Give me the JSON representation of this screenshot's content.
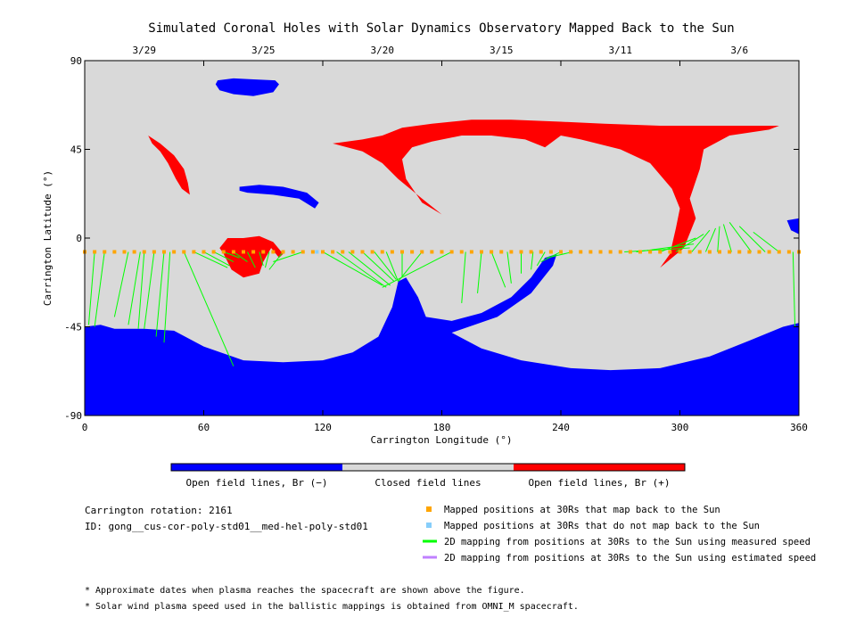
{
  "chart_data": {
    "type": "map",
    "title": "Simulated Coronal Holes with Solar Dynamics Observatory Mapped Back to the Sun",
    "xlabel": "Carrington Longitude (°)",
    "ylabel": "Carrington Latitude (°)",
    "xlim": [
      0,
      360
    ],
    "ylim": [
      -90,
      90
    ],
    "x_ticks": [
      0,
      60,
      120,
      180,
      240,
      300,
      360
    ],
    "y_ticks": [
      -90,
      -45,
      0,
      45,
      90
    ],
    "top_axis": {
      "labels": [
        "3/29",
        "3/25",
        "3/20",
        "3/15",
        "3/11",
        "3/6"
      ],
      "positions": [
        30,
        90,
        150,
        210,
        270,
        330
      ]
    },
    "colors": {
      "negative": "#0000ff",
      "closed": "#d9d9d9",
      "positive": "#ff0000",
      "mapped": "#ffa500",
      "unmapped": "#87cefa",
      "measured": "#00ff00",
      "estimated": "#c080ff"
    },
    "colorbar": [
      {
        "label": "Open field lines, Br (−)",
        "color": "#0000ff"
      },
      {
        "label": "Closed field lines",
        "color": "#d9d9d9"
      },
      {
        "label": "Open field lines, Br (+)",
        "color": "#ff0000"
      }
    ],
    "legend": [
      {
        "label": "Mapped positions at 30Rs that map back to the Sun",
        "symbol": "square",
        "color": "#ffa500"
      },
      {
        "label": "Mapped positions at 30Rs that do not map back to the Sun",
        "symbol": "square",
        "color": "#87cefa"
      },
      {
        "label": "2D mapping from positions at 30Rs to the Sun using measured speed",
        "symbol": "line",
        "color": "#00ff00"
      },
      {
        "label": "2D mapping from positions at 30Rs to the Sun using estimated speed",
        "symbol": "line",
        "color": "#c080ff"
      }
    ],
    "info": {
      "rotation": "Carrington rotation: 2161",
      "id": "ID: gong__cus-cor-poly-std01__med-hel-poly-std01"
    },
    "notes": [
      "* Approximate dates when plasma reaches the spacecraft are shown above the figure.",
      "* Solar wind plasma speed used in the ballistic mappings is obtained from OMNI_M spacecraft."
    ],
    "spacecraft_latitude": -7,
    "regions": [
      {
        "polarity": "negative",
        "points": [
          [
            0,
            -45
          ],
          [
            8,
            -44
          ],
          [
            15,
            -46
          ],
          [
            30,
            -46
          ],
          [
            45,
            -47
          ],
          [
            60,
            -55
          ],
          [
            80,
            -62
          ],
          [
            100,
            -63
          ],
          [
            120,
            -62
          ],
          [
            135,
            -58
          ],
          [
            148,
            -50
          ],
          [
            155,
            -35
          ],
          [
            158,
            -22
          ],
          [
            162,
            -20
          ],
          [
            168,
            -30
          ],
          [
            172,
            -40
          ],
          [
            185,
            -42
          ],
          [
            200,
            -38
          ],
          [
            215,
            -30
          ],
          [
            225,
            -20
          ],
          [
            232,
            -10
          ],
          [
            238,
            -8
          ],
          [
            236,
            -14
          ],
          [
            225,
            -28
          ],
          [
            208,
            -40
          ],
          [
            185,
            -48
          ],
          [
            200,
            -56
          ],
          [
            220,
            -62
          ],
          [
            245,
            -66
          ],
          [
            265,
            -67
          ],
          [
            290,
            -66
          ],
          [
            315,
            -60
          ],
          [
            335,
            -52
          ],
          [
            352,
            -45
          ],
          [
            360,
            -43
          ],
          [
            360,
            -90
          ],
          [
            0,
            -90
          ]
        ]
      },
      {
        "polarity": "negative",
        "points": [
          [
            67,
            80
          ],
          [
            75,
            81
          ],
          [
            85,
            80.5
          ],
          [
            96,
            80
          ],
          [
            98,
            78
          ],
          [
            95,
            74
          ],
          [
            85,
            72
          ],
          [
            75,
            73
          ],
          [
            68,
            75
          ],
          [
            66,
            78
          ]
        ]
      },
      {
        "polarity": "negative",
        "points": [
          [
            78,
            26
          ],
          [
            88,
            27
          ],
          [
            100,
            26
          ],
          [
            112,
            23
          ],
          [
            118,
            18
          ],
          [
            116,
            15
          ],
          [
            108,
            20
          ],
          [
            95,
            22
          ],
          [
            82,
            23
          ],
          [
            78,
            24
          ]
        ]
      },
      {
        "polarity": "negative",
        "points": [
          [
            354,
            9
          ],
          [
            360,
            10
          ],
          [
            360,
            2
          ],
          [
            356,
            4
          ]
        ]
      },
      {
        "polarity": "positive",
        "points": [
          [
            125,
            48
          ],
          [
            140,
            50
          ],
          [
            150,
            52
          ],
          [
            160,
            56
          ],
          [
            175,
            58
          ],
          [
            195,
            60
          ],
          [
            215,
            60
          ],
          [
            240,
            59
          ],
          [
            262,
            58
          ],
          [
            290,
            57
          ],
          [
            320,
            57
          ],
          [
            350,
            57
          ],
          [
            345,
            55
          ],
          [
            325,
            52
          ],
          [
            312,
            45
          ],
          [
            310,
            35
          ],
          [
            305,
            20
          ],
          [
            308,
            10
          ],
          [
            302,
            -5
          ],
          [
            290,
            -15
          ],
          [
            295,
            -8
          ],
          [
            298,
            5
          ],
          [
            300,
            15
          ],
          [
            296,
            25
          ],
          [
            285,
            38
          ],
          [
            270,
            45
          ],
          [
            250,
            50
          ],
          [
            240,
            52
          ],
          [
            232,
            46
          ],
          [
            222,
            50
          ],
          [
            205,
            52
          ],
          [
            190,
            52
          ],
          [
            175,
            49
          ],
          [
            165,
            46
          ],
          [
            160,
            40
          ],
          [
            162,
            30
          ],
          [
            170,
            18
          ],
          [
            180,
            12
          ],
          [
            170,
            20
          ],
          [
            158,
            30
          ],
          [
            150,
            38
          ],
          [
            140,
            44
          ]
        ]
      },
      {
        "polarity": "positive",
        "points": [
          [
            32,
            52
          ],
          [
            38,
            48
          ],
          [
            45,
            42
          ],
          [
            50,
            35
          ],
          [
            52,
            28
          ],
          [
            53,
            22
          ],
          [
            49,
            25
          ],
          [
            46,
            30
          ],
          [
            42,
            38
          ],
          [
            38,
            44
          ],
          [
            34,
            48
          ]
        ]
      },
      {
        "polarity": "positive",
        "points": [
          [
            68,
            -5
          ],
          [
            72,
            0
          ],
          [
            80,
            0
          ],
          [
            88,
            1
          ],
          [
            95,
            -2
          ],
          [
            100,
            -8
          ],
          [
            98,
            -10
          ],
          [
            94,
            -5
          ],
          [
            90,
            -12
          ],
          [
            88,
            -18
          ],
          [
            80,
            -20
          ],
          [
            74,
            -16
          ],
          [
            72,
            -12
          ],
          [
            70,
            -8
          ]
        ]
      }
    ],
    "mapping": [
      [
        5,
        -7,
        2,
        -44
      ],
      [
        10,
        -7,
        5,
        -45
      ],
      [
        22,
        -7,
        15,
        -40
      ],
      [
        28,
        -7,
        22,
        -44
      ],
      [
        30,
        -7,
        27,
        -46
      ],
      [
        35,
        -7,
        30,
        -46
      ],
      [
        40,
        -7,
        36,
        -50
      ],
      [
        43,
        -7,
        40,
        -53
      ],
      [
        50,
        -7,
        75,
        -65
      ],
      [
        55,
        -7,
        72,
        -15
      ],
      [
        60,
        -7,
        73,
        -14
      ],
      [
        65,
        -7,
        75,
        -12
      ],
      [
        70,
        -7,
        78,
        -10
      ],
      [
        75,
        -7,
        82,
        -12
      ],
      [
        82,
        -7,
        86,
        -15
      ],
      [
        88,
        -7,
        90,
        -14
      ],
      [
        93,
        -7,
        91,
        -15
      ],
      [
        100,
        -7,
        93,
        -16
      ],
      [
        110,
        -7,
        95,
        -12
      ],
      [
        120,
        -7,
        150,
        -24
      ],
      [
        127,
        -7,
        152,
        -25
      ],
      [
        133,
        -7,
        154,
        -24
      ],
      [
        140,
        -7,
        156,
        -22
      ],
      [
        146,
        -7,
        157,
        -21
      ],
      [
        152,
        -7,
        158,
        -22
      ],
      [
        160,
        -7,
        160,
        -20
      ],
      [
        170,
        -7,
        158,
        -22
      ],
      [
        185,
        -7,
        150,
        -25
      ],
      [
        192,
        -7,
        190,
        -33
      ],
      [
        200,
        -7,
        198,
        -28
      ],
      [
        205,
        -7,
        212,
        -25
      ],
      [
        213,
        -7,
        215,
        -23
      ],
      [
        220,
        -7,
        220,
        -18
      ],
      [
        226,
        -7,
        225,
        -16
      ],
      [
        232,
        -7,
        228,
        -14
      ],
      [
        240,
        -7,
        230,
        -12
      ],
      [
        246,
        -7,
        233,
        -10
      ],
      [
        272,
        -7,
        305,
        -5
      ],
      [
        278,
        -7,
        307,
        -3
      ],
      [
        290,
        -7,
        308,
        0
      ],
      [
        298,
        -7,
        312,
        2
      ],
      [
        306,
        -7,
        315,
        4
      ],
      [
        313,
        -7,
        318,
        5
      ],
      [
        319,
        -7,
        320,
        6
      ],
      [
        326,
        -7,
        322,
        7
      ],
      [
        336,
        -7,
        325,
        8
      ],
      [
        343,
        -7,
        330,
        6
      ],
      [
        350,
        -7,
        337,
        3
      ],
      [
        357,
        -7,
        358,
        -45
      ]
    ],
    "mapped_x": [
      0,
      5,
      10,
      15,
      20,
      25,
      30,
      35,
      40,
      45,
      50,
      55,
      60,
      65,
      70,
      75,
      80,
      85,
      90,
      95,
      100,
      105,
      110,
      115,
      120,
      125,
      130,
      135,
      140,
      145,
      150,
      155,
      160,
      165,
      170,
      175,
      180,
      185,
      190,
      195,
      200,
      205,
      210,
      215,
      220,
      225,
      230,
      235,
      240,
      245,
      250,
      255,
      260,
      265,
      270,
      275,
      280,
      285,
      290,
      295,
      300,
      305,
      310,
      315,
      320,
      325,
      330,
      335,
      340,
      345,
      350,
      355,
      360
    ],
    "unmapped_x": [
      117
    ]
  }
}
